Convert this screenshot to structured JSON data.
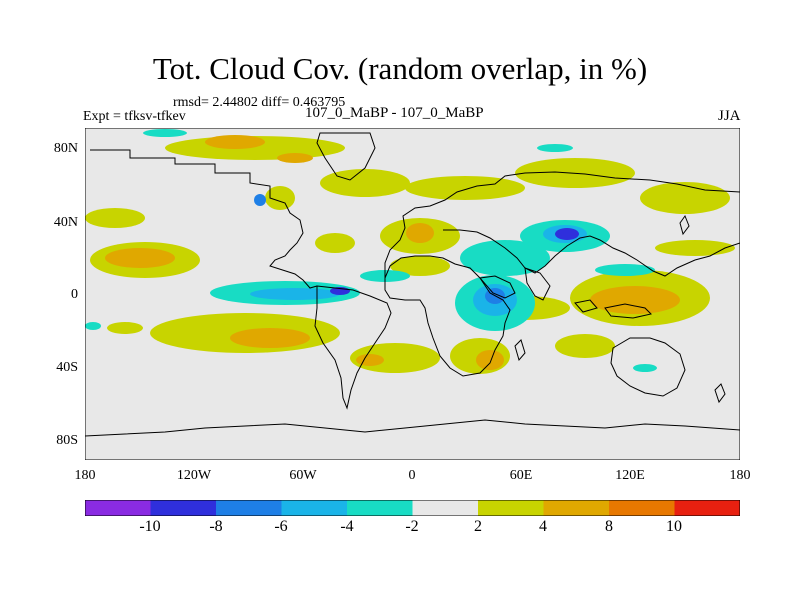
{
  "title": "Tot. Cloud Cov. (random overlap, in %)",
  "stats": "rmsd= 2.44802 diff= 0.463795",
  "experiment": "Expt = tfksv-tfkev",
  "center_label": "107_0_MaBP - 107_0_MaBP",
  "season": "JJA",
  "axes": {
    "lat_ticks": [
      "80N",
      "40N",
      "0",
      "40S",
      "80S"
    ],
    "lon_ticks": [
      "180",
      "120W",
      "60W",
      "0",
      "60E",
      "120E",
      "180"
    ]
  },
  "colorbar": {
    "colors": [
      "#8a2be2",
      "#2f2fdc",
      "#1e7fe6",
      "#1ab4e8",
      "#18dcc4",
      "#e8e8e8",
      "#c8d400",
      "#e0a800",
      "#e87800",
      "#e82010"
    ],
    "labels": [
      "-10",
      "-8",
      "-6",
      "-4",
      "-2",
      "2",
      "4",
      "8",
      "10"
    ]
  }
}
